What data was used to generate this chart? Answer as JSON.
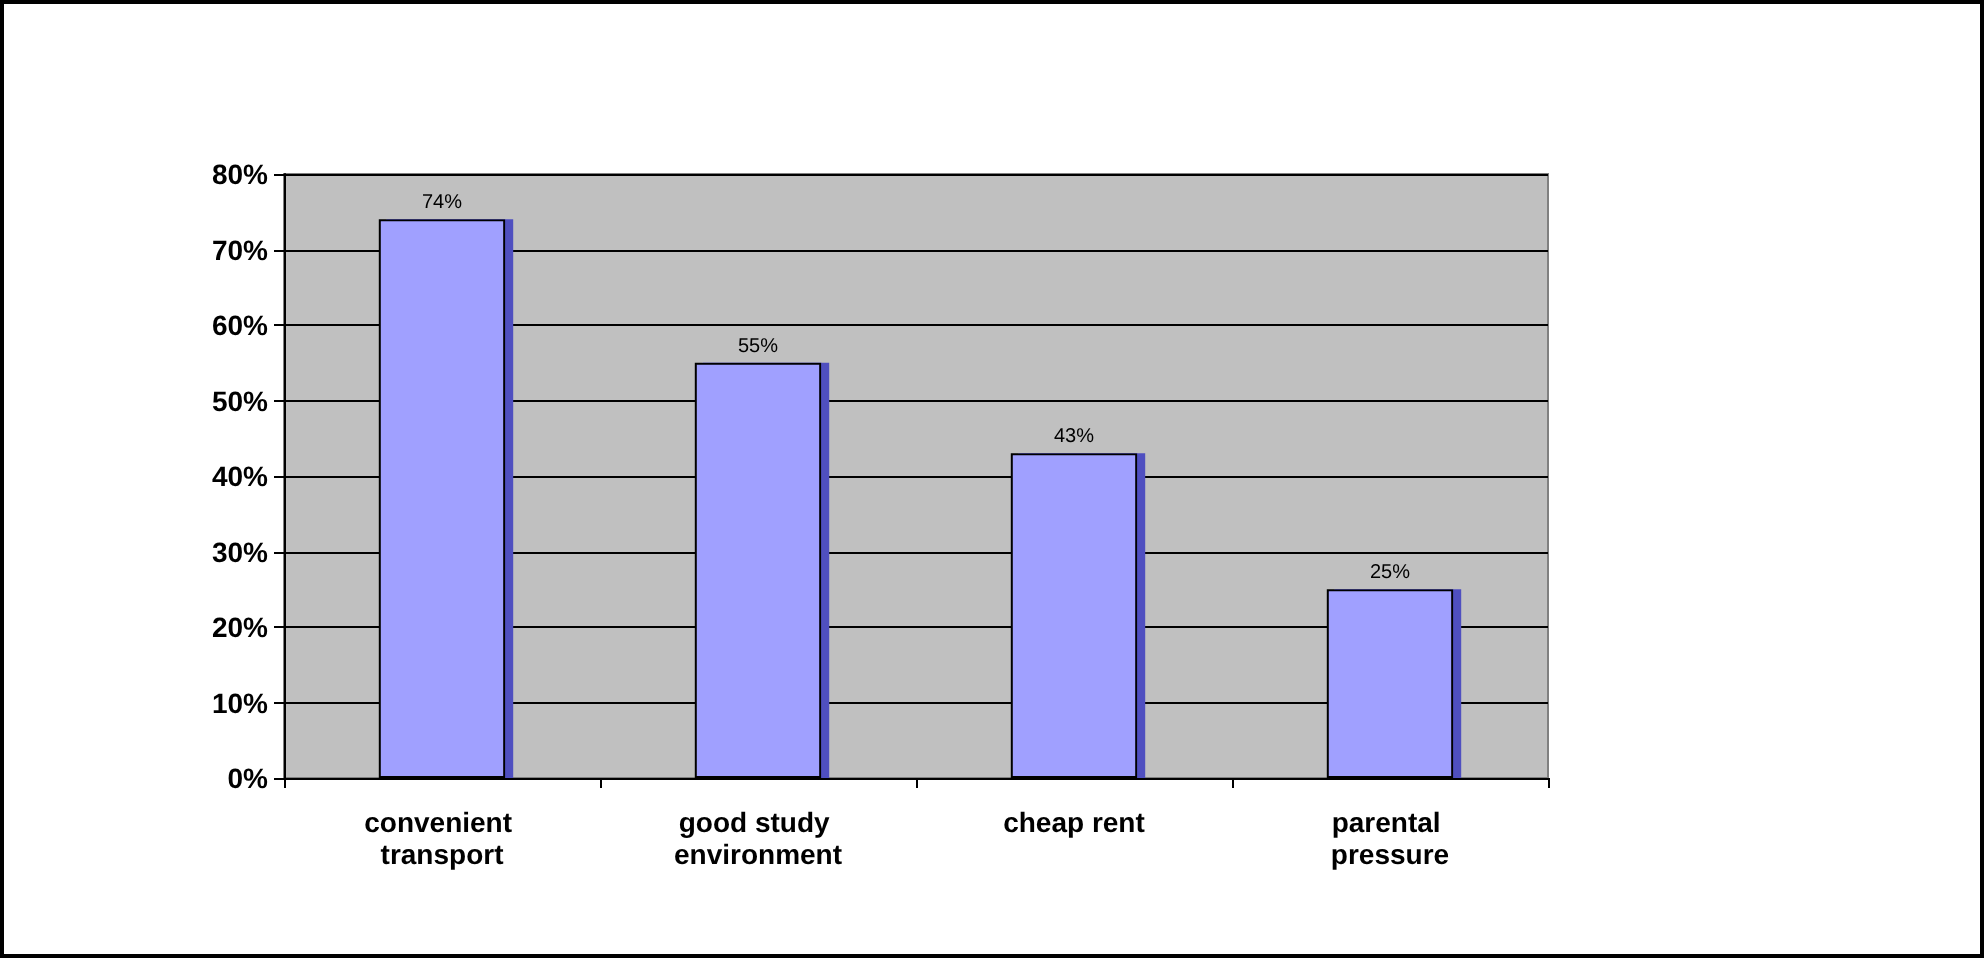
{
  "chart_data": {
    "type": "bar",
    "categories": [
      "convenient transport",
      "good study environment",
      "cheap rent",
      "parental pressure"
    ],
    "values": [
      74,
      55,
      43,
      25
    ],
    "color": "#a0a0ff",
    "value_labels": [
      "74%",
      "55%",
      "43%",
      "25%"
    ],
    "ylim": [
      0,
      80
    ],
    "yticks": [
      {
        "value": 0,
        "label": "0%"
      },
      {
        "value": 10,
        "label": "10%"
      },
      {
        "value": 20,
        "label": "20%"
      },
      {
        "value": 30,
        "label": "30%"
      },
      {
        "value": 40,
        "label": "40%"
      },
      {
        "value": 50,
        "label": "50%"
      },
      {
        "value": 60,
        "label": "60%"
      },
      {
        "value": 70,
        "label": "70%"
      },
      {
        "value": 80,
        "label": "80%"
      }
    ],
    "grid": true
  }
}
